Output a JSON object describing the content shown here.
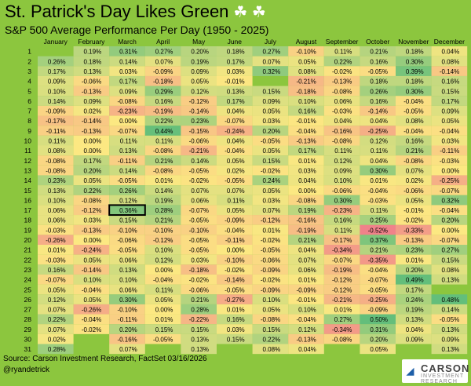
{
  "chart_data": {
    "type": "heatmap",
    "title": "St. Patrick's Day Likes Green",
    "title_icons": [
      "shamrock-icon",
      "shamrock-icon"
    ],
    "subtitle": "S&P 500 Average Performance Per Day (1950 - 2025)",
    "months": [
      "January",
      "February",
      "March",
      "April",
      "May",
      "June",
      "July",
      "August",
      "September",
      "October",
      "November",
      "December"
    ],
    "days": [
      "1",
      "2",
      "3",
      "4",
      "5",
      "6",
      "7",
      "8",
      "9",
      "10",
      "11",
      "12",
      "13",
      "14",
      "15",
      "16",
      "17",
      "18",
      "19",
      "20",
      "21",
      "22",
      "23",
      "24",
      "25",
      "26",
      "27",
      "28",
      "29",
      "30",
      "31"
    ],
    "values": [
      [
        "",
        "0.19%",
        "0.31%",
        "0.27%",
        "0.20%",
        "0.18%",
        "0.27%",
        "-0.10%",
        "0.11%",
        "0.21%",
        "0.18%",
        "0.04%"
      ],
      [
        "0.26%",
        "0.18%",
        "0.14%",
        "0.07%",
        "0.19%",
        "0.17%",
        "0.07%",
        "0.05%",
        "0.22%",
        "0.16%",
        "0.30%",
        "0.08%"
      ],
      [
        "0.17%",
        "0.13%",
        "0.03%",
        "-0.09%",
        "0.09%",
        "0.03%",
        "0.32%",
        "0.08%",
        "-0.02%",
        "-0.05%",
        "0.39%",
        "-0.14%"
      ],
      [
        "0.09%",
        "-0.06%",
        "0.17%",
        "-0.18%",
        "0.05%",
        "-0.01%",
        "",
        "-0.21%",
        "-0.13%",
        "0.18%",
        "0.18%",
        "0.16%"
      ],
      [
        "0.10%",
        "-0.13%",
        "0.09%",
        "0.29%",
        "0.12%",
        "0.13%",
        "0.15%",
        "-0.18%",
        "-0.08%",
        "0.26%",
        "0.30%",
        "0.15%"
      ],
      [
        "0.14%",
        "0.09%",
        "-0.08%",
        "0.16%",
        "-0.12%",
        "0.17%",
        "0.09%",
        "0.10%",
        "0.06%",
        "0.16%",
        "-0.04%",
        "0.17%"
      ],
      [
        "-0.09%",
        "0.02%",
        "-0.23%",
        "-0.19%",
        "-0.14%",
        "0.04%",
        "0.05%",
        "0.16%",
        "-0.03%",
        "-0.14%",
        "-0.05%",
        "0.09%"
      ],
      [
        "-0.17%",
        "-0.14%",
        "0.00%",
        "0.22%",
        "0.23%",
        "-0.07%",
        "0.03%",
        "-0.01%",
        "0.04%",
        "0.04%",
        "0.08%",
        "0.05%"
      ],
      [
        "-0.11%",
        "-0.13%",
        "-0.07%",
        "0.44%",
        "-0.15%",
        "-0.24%",
        "0.20%",
        "-0.04%",
        "-0.16%",
        "-0.25%",
        "-0.04%",
        "-0.04%"
      ],
      [
        "0.11%",
        "0.00%",
        "0.11%",
        "0.11%",
        "-0.06%",
        "0.04%",
        "-0.05%",
        "-0.13%",
        "-0.08%",
        "0.12%",
        "0.16%",
        "0.03%"
      ],
      [
        "0.08%",
        "0.00%",
        "0.13%",
        "-0.08%",
        "-0.21%",
        "-0.04%",
        "0.05%",
        "0.17%",
        "0.11%",
        "0.11%",
        "0.21%",
        "-0.11%"
      ],
      [
        "-0.08%",
        "0.17%",
        "-0.11%",
        "0.21%",
        "0.14%",
        "0.05%",
        "0.15%",
        "0.01%",
        "0.12%",
        "0.04%",
        "-0.08%",
        "-0.03%"
      ],
      [
        "-0.08%",
        "0.20%",
        "0.14%",
        "-0.08%",
        "-0.05%",
        "0.02%",
        "-0.02%",
        "0.03%",
        "0.09%",
        "0.30%",
        "0.07%",
        "0.00%"
      ],
      [
        "0.23%",
        "0.05%",
        "-0.05%",
        "0.01%",
        "-0.02%",
        "-0.05%",
        "0.24%",
        "0.04%",
        "0.10%",
        "0.01%",
        "0.02%",
        "-0.25%"
      ],
      [
        "0.13%",
        "0.22%",
        "0.26%",
        "0.14%",
        "0.07%",
        "0.07%",
        "0.05%",
        "0.00%",
        "-0.06%",
        "-0.04%",
        "-0.06%",
        "-0.07%"
      ],
      [
        "0.10%",
        "-0.08%",
        "0.12%",
        "0.19%",
        "0.06%",
        "0.11%",
        "0.03%",
        "-0.08%",
        "0.30%",
        "-0.03%",
        "0.05%",
        "0.32%"
      ],
      [
        "0.06%",
        "-0.12%",
        "0.36%",
        "0.28%",
        "-0.07%",
        "0.05%",
        "0.07%",
        "0.19%",
        "-0.23%",
        "0.11%",
        "-0.01%",
        "-0.04%"
      ],
      [
        "0.06%",
        "0.03%",
        "0.15%",
        "0.21%",
        "-0.05%",
        "-0.09%",
        "-0.12%",
        "-0.16%",
        "0.16%",
        "0.25%",
        "-0.02%",
        "0.20%"
      ],
      [
        "-0.03%",
        "-0.13%",
        "-0.10%",
        "-0.10%",
        "-0.10%",
        "-0.04%",
        "0.01%",
        "-0.19%",
        "0.11%",
        "-0.52%",
        "-0.33%",
        "0.00%"
      ],
      [
        "-0.26%",
        "0.00%",
        "-0.06%",
        "-0.12%",
        "-0.05%",
        "-0.11%",
        "-0.02%",
        "0.21%",
        "-0.17%",
        "0.37%",
        "-0.13%",
        "-0.07%"
      ],
      [
        "0.01%",
        "-0.24%",
        "-0.05%",
        "0.10%",
        "-0.05%",
        "0.00%",
        "-0.05%",
        "0.04%",
        "-0.34%",
        "0.21%",
        "0.23%",
        "0.27%"
      ],
      [
        "-0.03%",
        "0.05%",
        "0.06%",
        "0.12%",
        "0.03%",
        "-0.10%",
        "-0.06%",
        "0.07%",
        "-0.07%",
        "-0.35%",
        "0.01%",
        "0.15%"
      ],
      [
        "0.16%",
        "-0.14%",
        "0.13%",
        "0.00%",
        "-0.18%",
        "-0.02%",
        "-0.09%",
        "0.06%",
        "-0.19%",
        "-0.04%",
        "0.20%",
        "0.08%"
      ],
      [
        "-0.07%",
        "0.10%",
        "0.10%",
        "-0.04%",
        "-0.02%",
        "-0.14%",
        "-0.02%",
        "0.01%",
        "-0.12%",
        "-0.07%",
        "0.49%",
        "0.13%"
      ],
      [
        "0.05%",
        "-0.04%",
        "0.06%",
        "0.11%",
        "-0.06%",
        "-0.05%",
        "-0.09%",
        "-0.09%",
        "-0.12%",
        "-0.05%",
        "0.17%",
        ""
      ],
      [
        "0.12%",
        "0.05%",
        "0.30%",
        "0.05%",
        "0.21%",
        "-0.27%",
        "0.10%",
        "-0.01%",
        "-0.21%",
        "-0.25%",
        "0.24%",
        "0.48%"
      ],
      [
        "0.07%",
        "-0.26%",
        "-0.10%",
        "0.00%",
        "0.28%",
        "0.01%",
        "0.05%",
        "0.10%",
        "0.01%",
        "-0.09%",
        "0.19%",
        "0.14%"
      ],
      [
        "0.22%",
        "-0.04%",
        "-0.11%",
        "0.01%",
        "-0.22%",
        "0.16%",
        "-0.08%",
        "-0.04%",
        "0.27%",
        "0.50%",
        "0.13%",
        "-0.05%"
      ],
      [
        "0.07%",
        "-0.02%",
        "0.20%",
        "0.15%",
        "0.15%",
        "0.03%",
        "0.15%",
        "0.12%",
        "-0.34%",
        "0.31%",
        "0.04%",
        "0.13%"
      ],
      [
        "0.02%",
        "",
        "-0.16%",
        "-0.05%",
        "0.13%",
        "0.15%",
        "0.22%",
        "-0.13%",
        "-0.08%",
        "0.20%",
        "0.09%",
        "0.09%"
      ],
      [
        "0.28%",
        "",
        "0.07%",
        "",
        "0.13%",
        "",
        "0.08%",
        "0.04%",
        "",
        "0.05%",
        "",
        "0.13%"
      ]
    ],
    "highlight": {
      "day": "17",
      "month": "March"
    },
    "color_scale": {
      "negative": "#f0828a",
      "neutral": "#fce882",
      "positive": "#63be7b"
    }
  },
  "footer": {
    "source": "Source: Carson Investment Research, FactSet 03/16/2026",
    "handle": "@ryandetrick",
    "logo_text": "CARSON",
    "logo_subtext": "INVESTMENT RESEARCH"
  }
}
